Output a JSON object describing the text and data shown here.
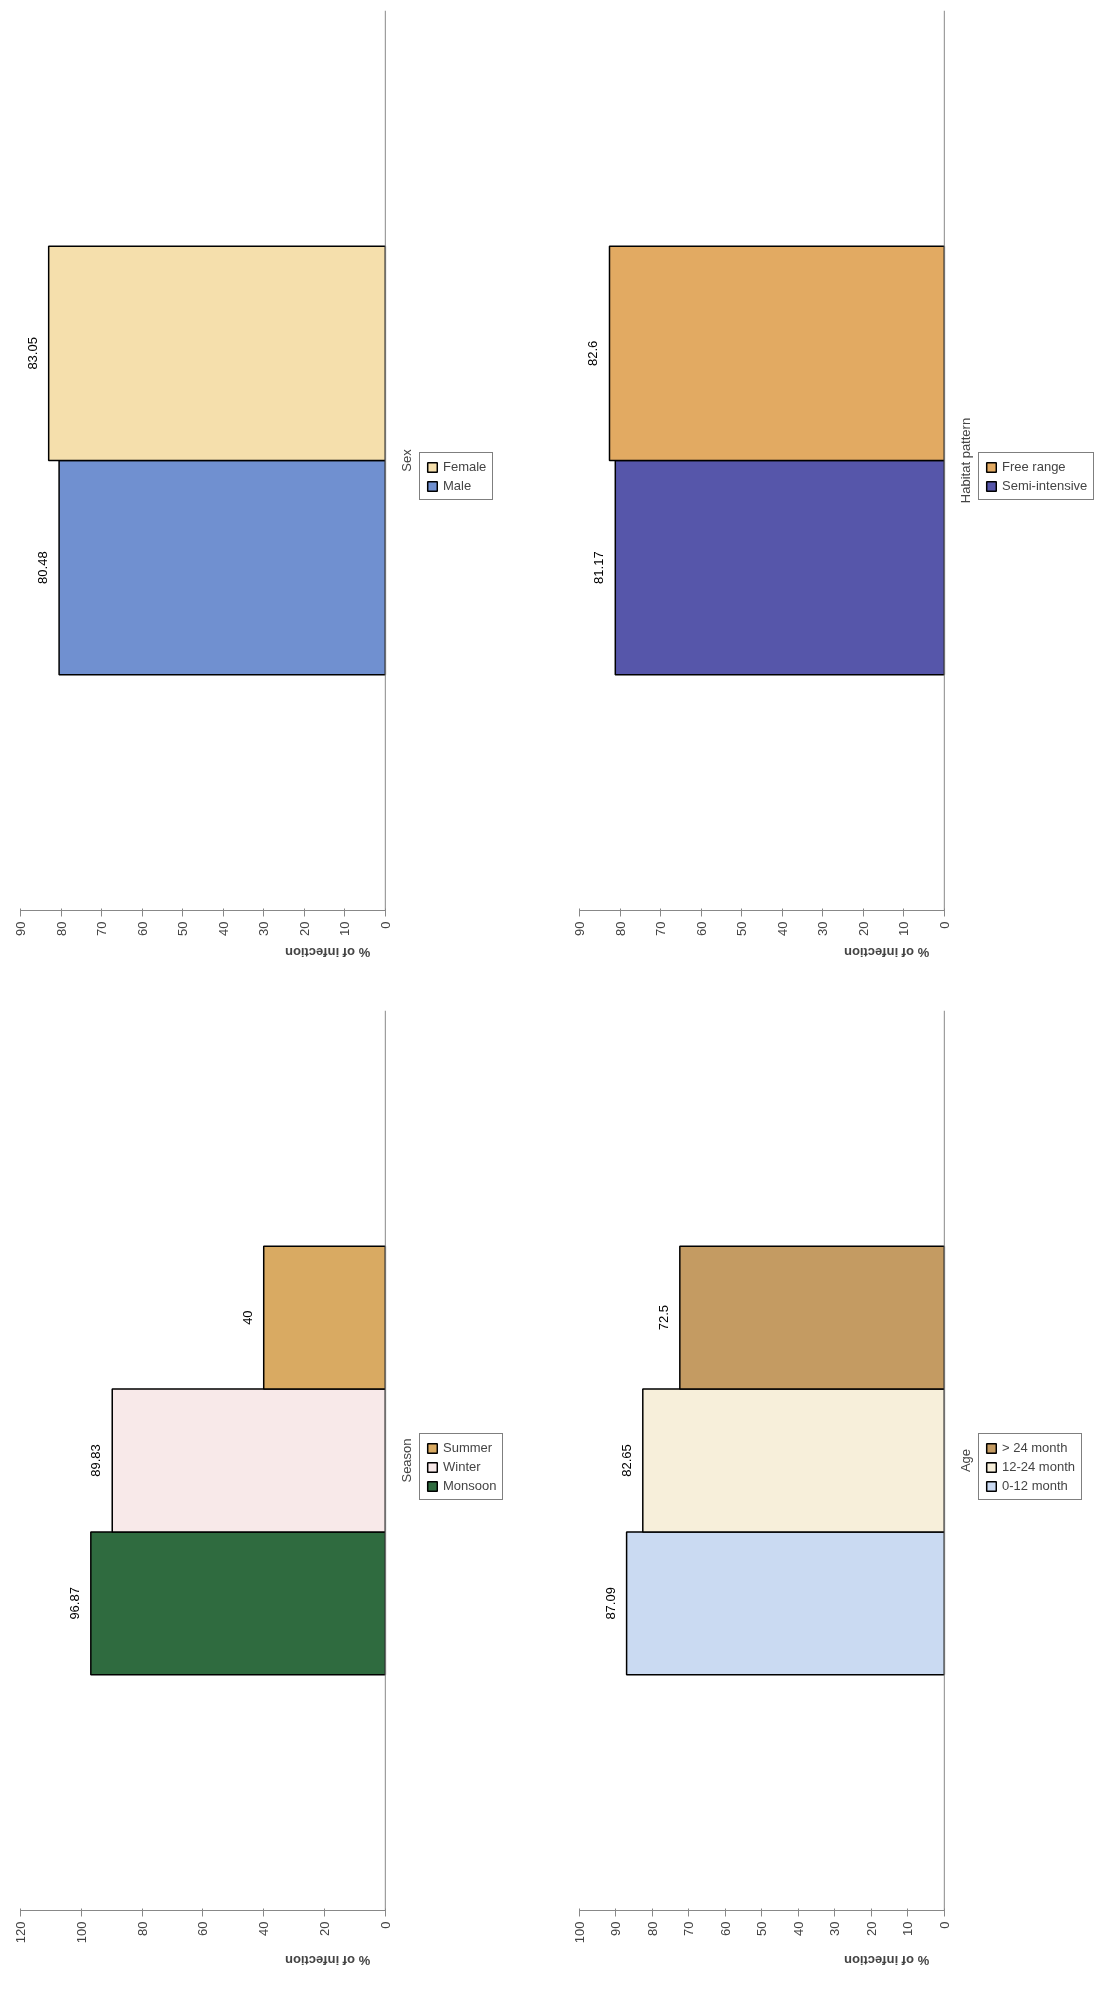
{
  "chart_data": [
    {
      "type": "bar",
      "orientation": "horizontal",
      "categories": [
        null
      ],
      "ylabel": "Sex",
      "xlabel": "% of infection",
      "xlim": [
        90,
        0
      ],
      "xticks": [
        0,
        10,
        20,
        30,
        40,
        50,
        60,
        70,
        80,
        90
      ],
      "legend": "right",
      "data_labels": true,
      "series": [
        {
          "name": "Male",
          "color": "#7090d0",
          "values": [
            80.48
          ]
        },
        {
          "name": "Female",
          "color": "#f5dfac",
          "values": [
            83.05
          ]
        }
      ]
    },
    {
      "type": "bar",
      "orientation": "horizontal",
      "categories": [
        null
      ],
      "ylabel": "Habitat pattern",
      "xlabel": "% of infection",
      "xlim": [
        90,
        0
      ],
      "xticks": [
        0,
        10,
        20,
        30,
        40,
        50,
        60,
        70,
        80,
        90
      ],
      "legend": "right",
      "data_labels": true,
      "series": [
        {
          "name": "Semi-intensive",
          "color": "#5656aa",
          "values": [
            81.17
          ]
        },
        {
          "name": "Free range",
          "color": "#e2aa62",
          "values": [
            82.6
          ]
        }
      ]
    },
    {
      "type": "bar",
      "orientation": "horizontal",
      "categories": [
        null
      ],
      "ylabel": "Season",
      "xlabel": "% of infection",
      "xlim": [
        120,
        0
      ],
      "xticks": [
        0,
        20,
        40,
        60,
        80,
        100,
        120
      ],
      "legend": "right",
      "data_labels": true,
      "series": [
        {
          "name": "Monsoon",
          "color": "#2f6b3f",
          "values": [
            96.87
          ]
        },
        {
          "name": "Winter",
          "color": "#f8e9e9",
          "values": [
            89.83
          ]
        },
        {
          "name": "Summer",
          "color": "#d9aa62",
          "values": [
            40
          ]
        }
      ]
    },
    {
      "type": "bar",
      "orientation": "horizontal",
      "categories": [
        null
      ],
      "ylabel": "Age",
      "xlabel": "% of infection",
      "xlim": [
        100,
        0
      ],
      "xticks": [
        0,
        10,
        20,
        30,
        40,
        50,
        60,
        70,
        80,
        90,
        100
      ],
      "legend": "right",
      "data_labels": true,
      "series": [
        {
          "name": "0-12 month",
          "color": "#cadaf2",
          "values": [
            87.09
          ]
        },
        {
          "name": "12-24 month",
          "color": "#f7efda",
          "values": [
            82.65
          ]
        },
        {
          "name": "> 24 month",
          "color": "#c49b62",
          "values": [
            72.5
          ]
        }
      ]
    }
  ]
}
